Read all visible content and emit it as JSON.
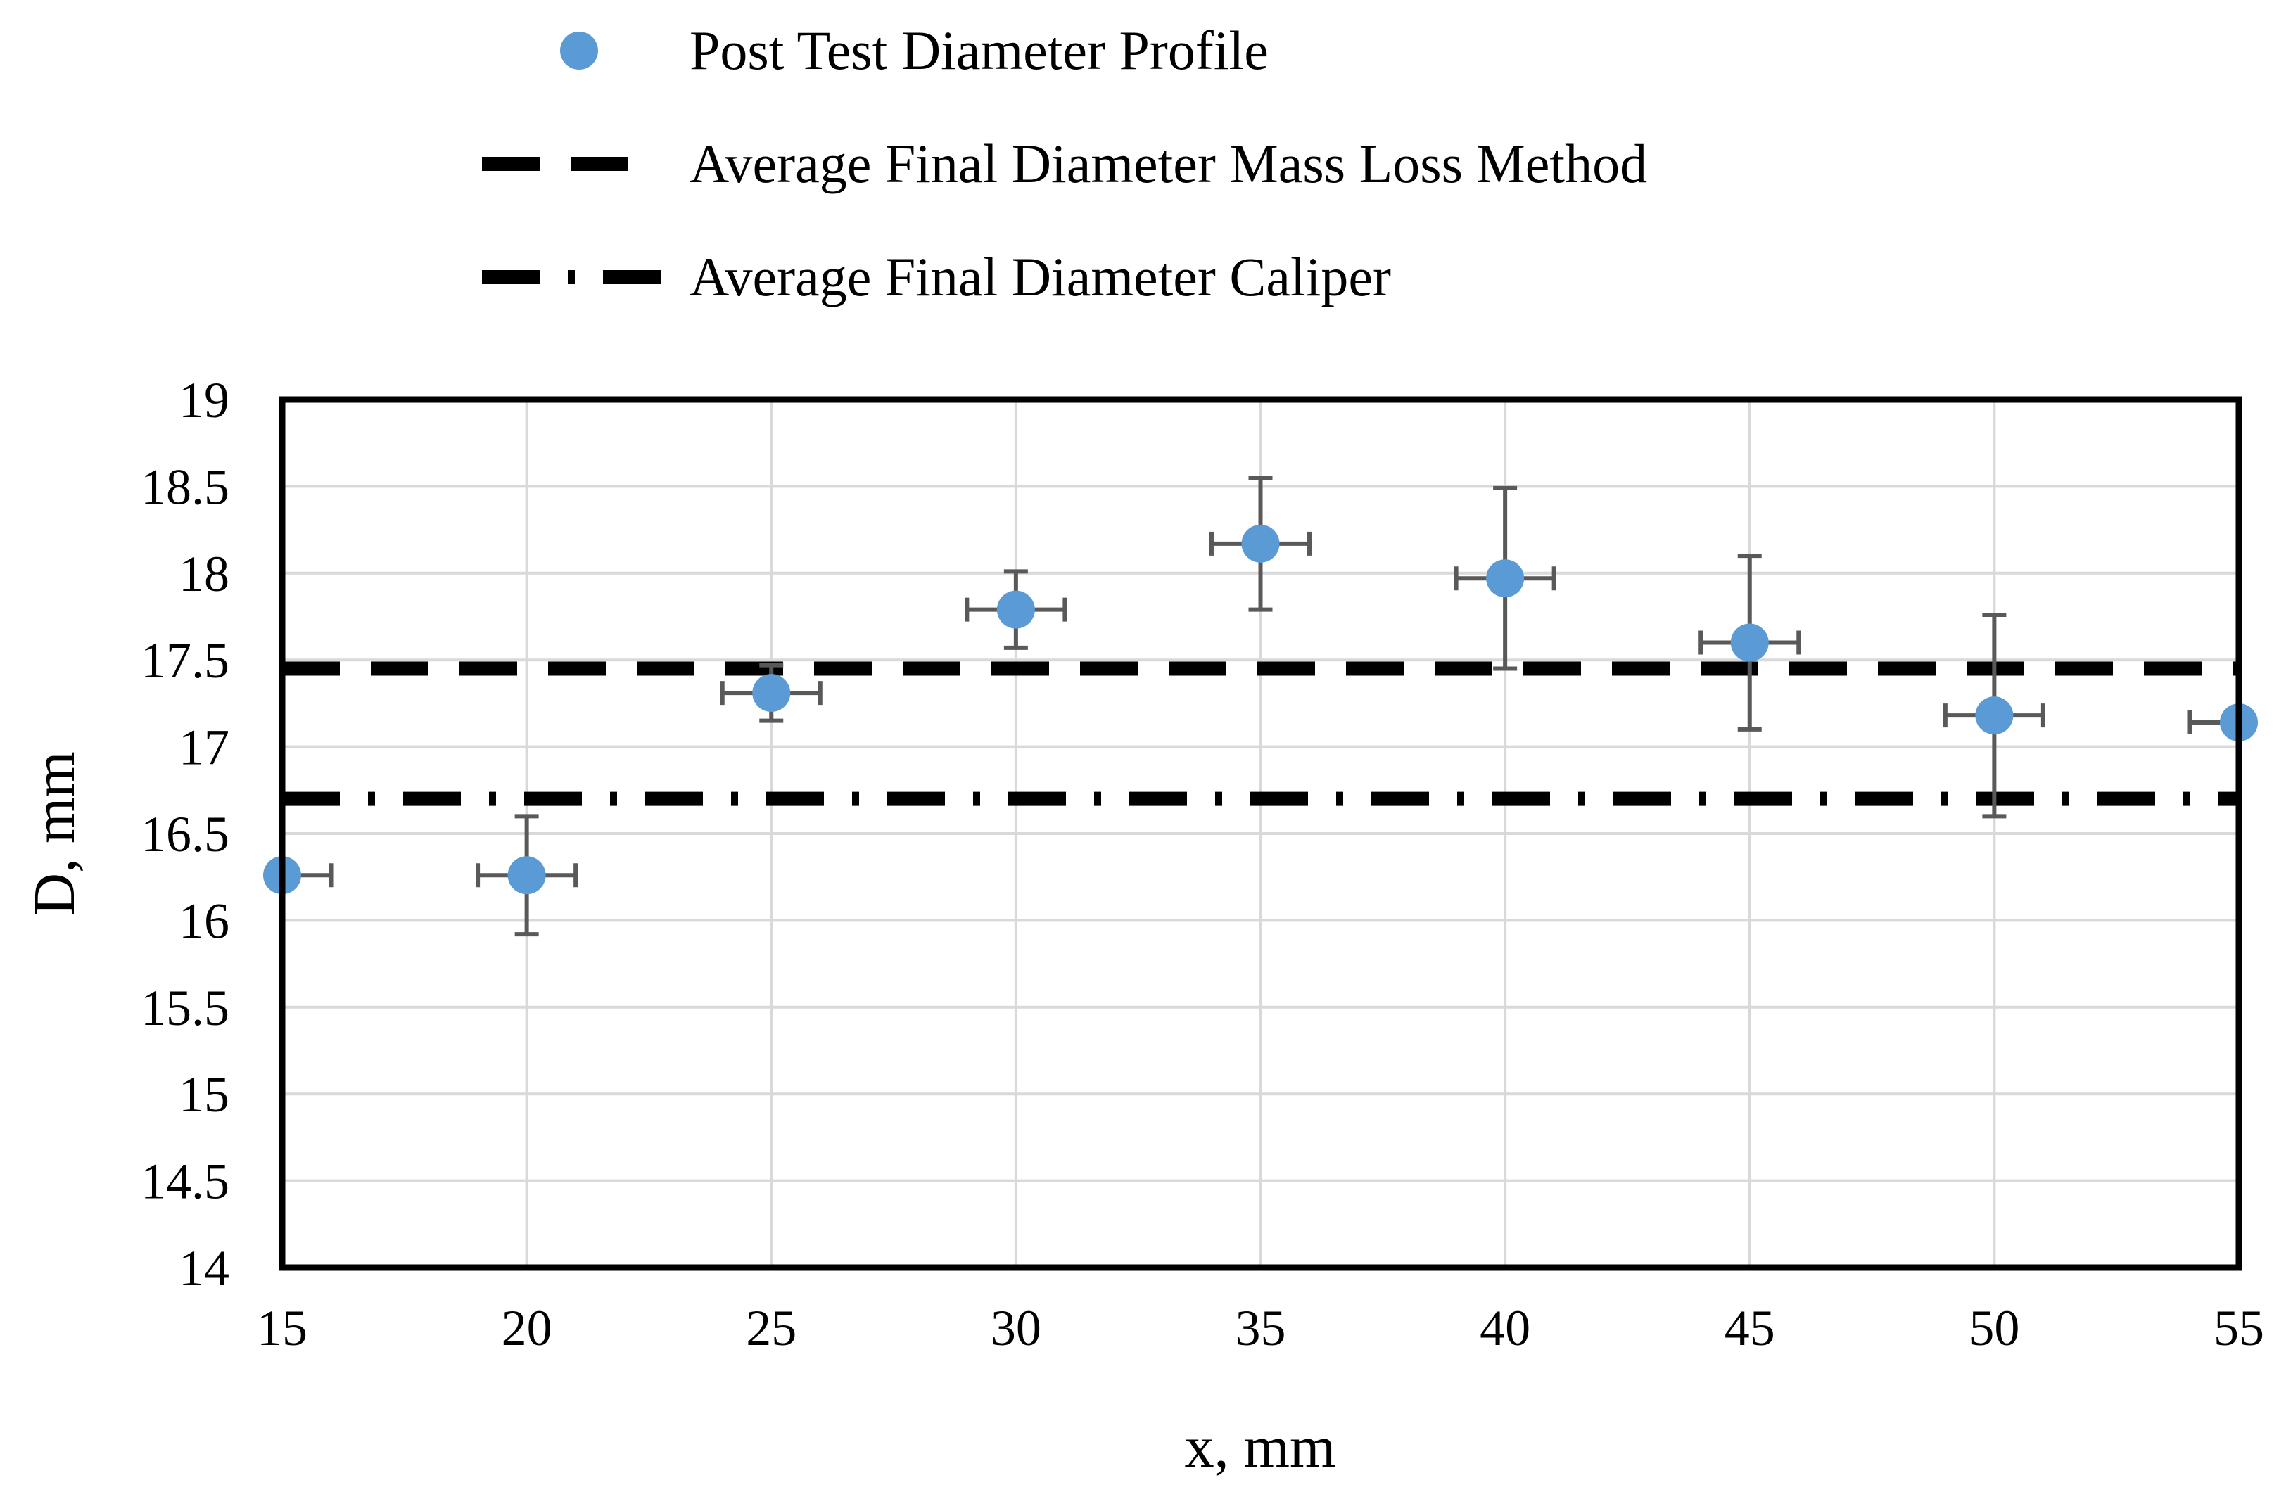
{
  "chart_data": {
    "type": "scatter",
    "title": "",
    "xlabel": "x, mm",
    "ylabel": "D, mm",
    "xlim": [
      15,
      55
    ],
    "ylim": [
      14,
      19
    ],
    "x_ticks": [
      "15",
      "20",
      "25",
      "30",
      "35",
      "40",
      "45",
      "50",
      "55"
    ],
    "y_ticks": [
      "14",
      "14.5",
      "15",
      "15.5",
      "16",
      "16.5",
      "17",
      "17.5",
      "18",
      "18.5",
      "19"
    ],
    "grid": true,
    "legend_position": "top",
    "colors": {
      "points": "#5b9bd5",
      "error_bars": "#595959",
      "reference_lines": "#000000",
      "grid": "#d9d9d9",
      "frame": "#000000"
    },
    "series": [
      {
        "name": "Post Test Diameter Profile",
        "kind": "points",
        "x": [
          15,
          20,
          25,
          30,
          35,
          40,
          45,
          50,
          55
        ],
        "y": [
          16.26,
          16.26,
          17.31,
          17.79,
          18.17,
          17.97,
          17.6,
          17.18,
          17.14
        ],
        "y_error": [
          0,
          0.34,
          0.16,
          0.22,
          0.38,
          0.52,
          0.5,
          0.58,
          0
        ],
        "x_error": 1
      },
      {
        "name": "Average Final Diameter Mass Loss Method",
        "kind": "reference_line",
        "style": "dashed",
        "y": 17.45
      },
      {
        "name": "Average Final Diameter Caliper",
        "kind": "reference_line",
        "style": "dash-dot",
        "y": 16.7
      }
    ]
  }
}
